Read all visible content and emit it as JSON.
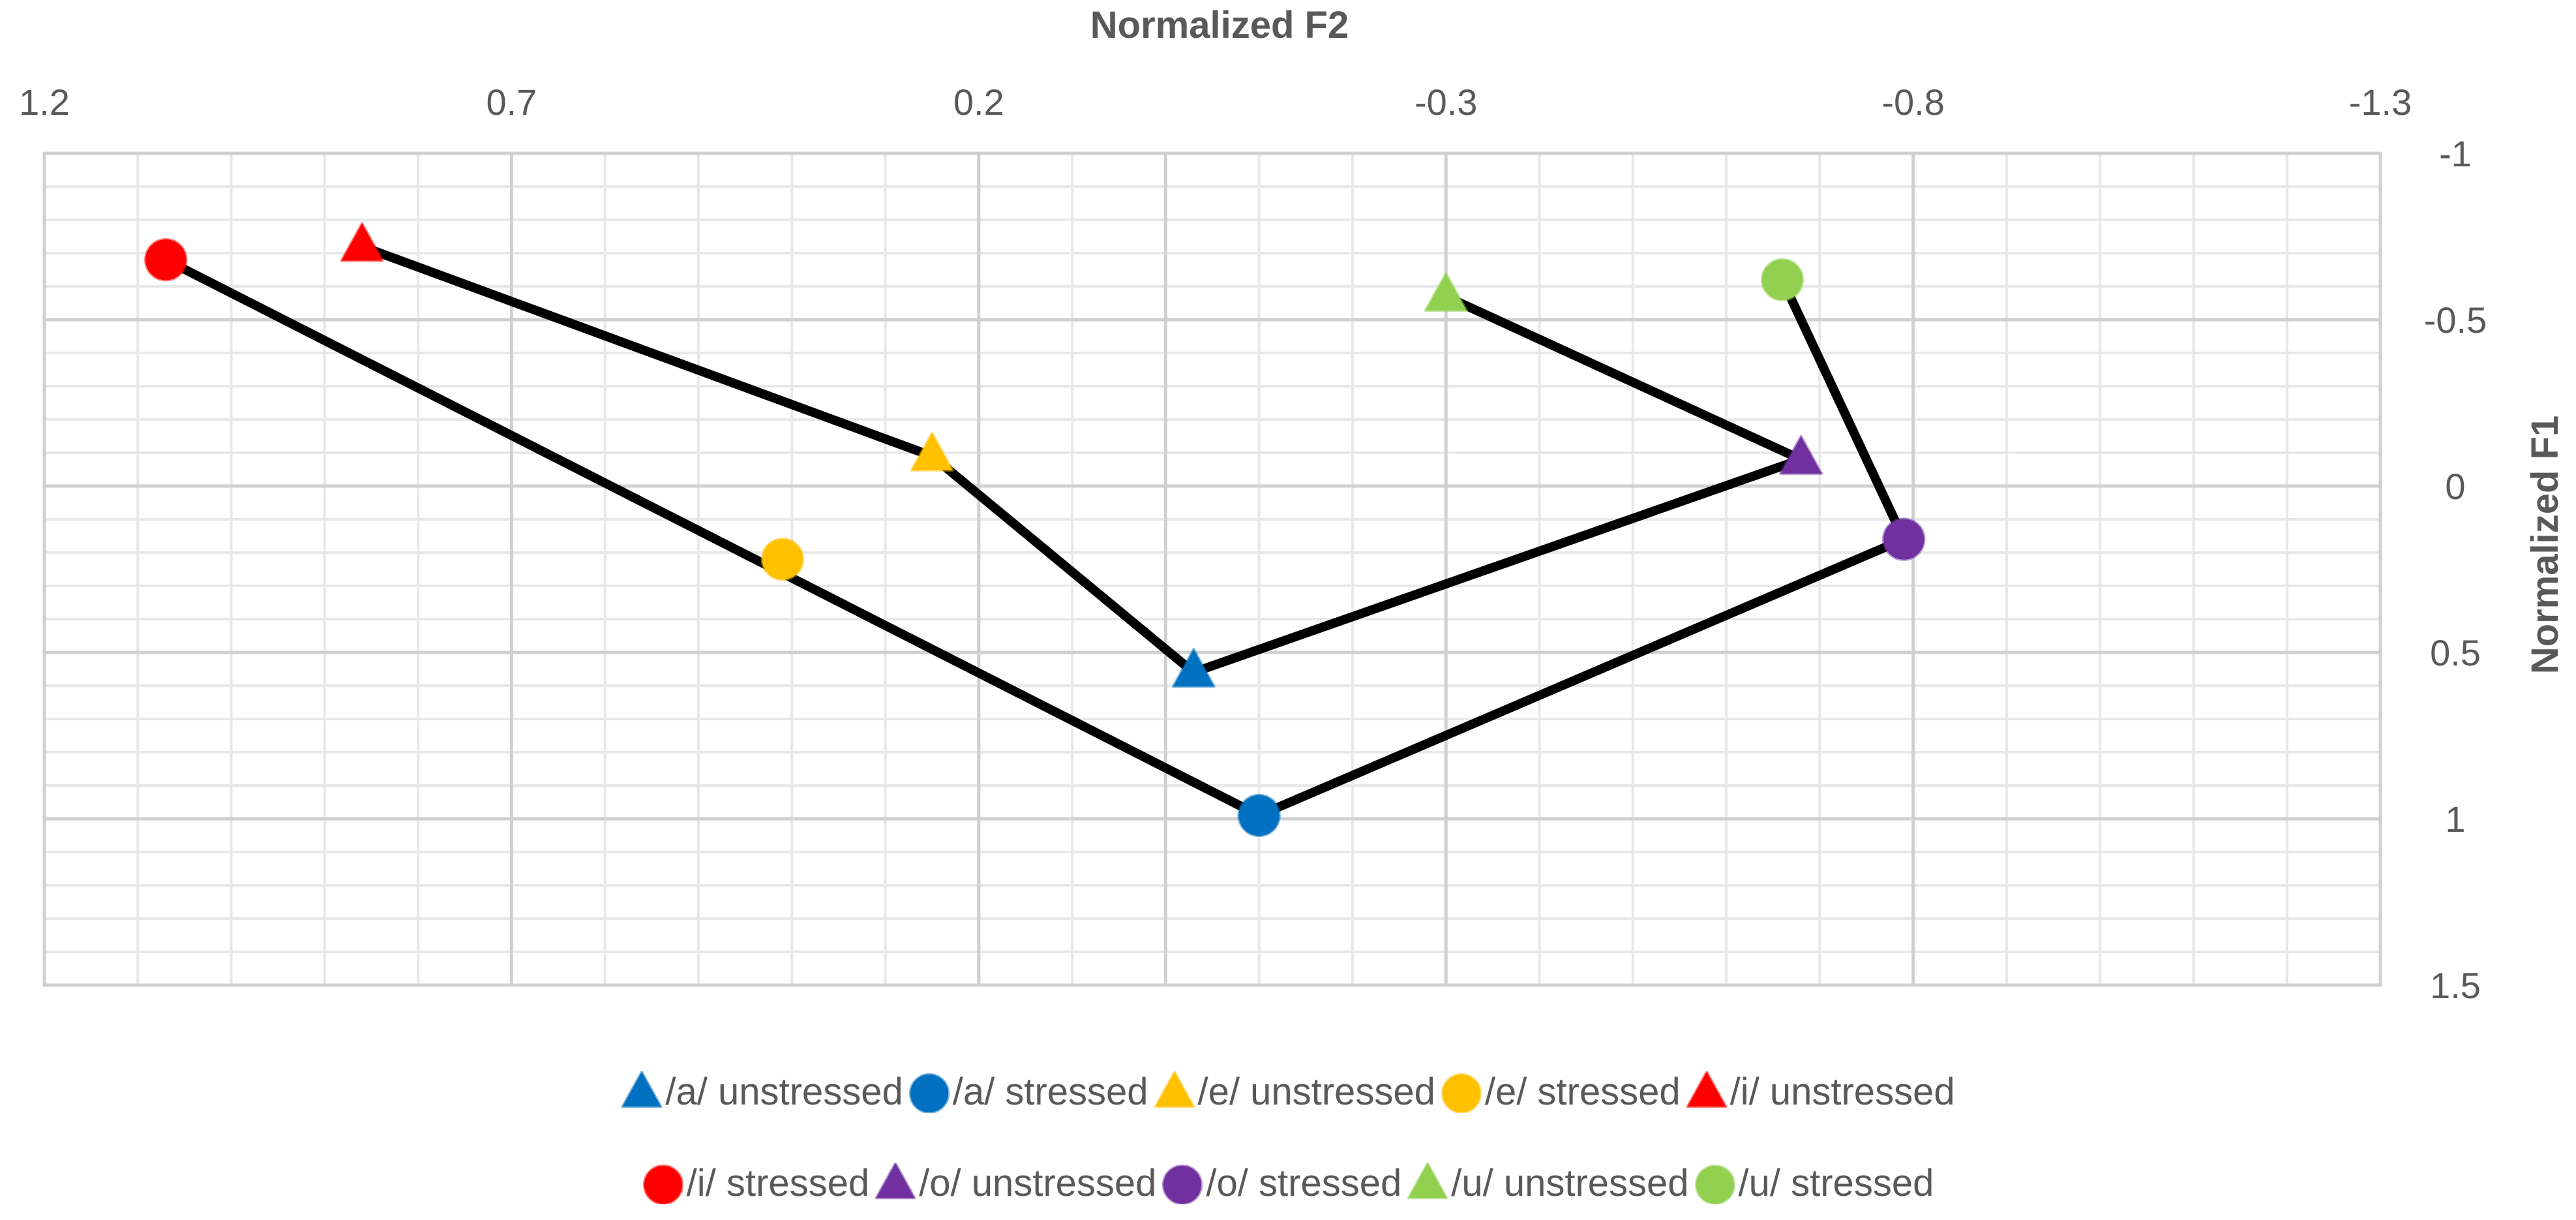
{
  "chart_data": {
    "type": "scatter",
    "xlabel": "Normalized F2",
    "ylabel": "Normalized F1",
    "x_axis": {
      "min": -1.3,
      "max": 1.2,
      "reversed": true,
      "major_unit": 0.5,
      "minor_unit": 0.1,
      "position": "top",
      "tick_labels": [
        "1.2",
        "0.7",
        "0.2",
        "-0.3",
        "-0.8",
        "-1.3"
      ]
    },
    "y_axis": {
      "min": -1,
      "max": 1.5,
      "reversed": true,
      "major_unit": 0.5,
      "minor_unit": 0.1,
      "position": "right",
      "tick_labels": [
        "-1",
        "-0.5",
        "0",
        "0.5",
        "1",
        "1.5"
      ]
    },
    "grid": true,
    "legend_position": "bottom",
    "series": [
      {
        "name": "/a/ unstressed",
        "marker": "triangle",
        "color": "#0070C0",
        "x": -0.03,
        "y": 0.56
      },
      {
        "name": "/a/ stressed",
        "marker": "circle",
        "color": "#0070C0",
        "x": -0.1,
        "y": 0.99
      },
      {
        "name": "/e/ unstressed",
        "marker": "triangle",
        "color": "#FFC000",
        "x": 0.25,
        "y": -0.09
      },
      {
        "name": "/e/ stressed",
        "marker": "circle",
        "color": "#FFC000",
        "x": 0.41,
        "y": 0.22
      },
      {
        "name": "/i/ unstressed",
        "marker": "triangle",
        "color": "#FF0000",
        "x": 0.86,
        "y": -0.72
      },
      {
        "name": "/i/ stressed",
        "marker": "circle",
        "color": "#FF0000",
        "x": 1.07,
        "y": -0.68
      },
      {
        "name": "/o/ unstressed",
        "marker": "triangle",
        "color": "#7030A0",
        "x": -0.68,
        "y": -0.08
      },
      {
        "name": "/o/ stressed",
        "marker": "circle",
        "color": "#7030A0",
        "x": -0.79,
        "y": 0.16
      },
      {
        "name": "/u/ unstressed",
        "marker": "triangle",
        "color": "#92D050",
        "x": -0.3,
        "y": -0.57
      },
      {
        "name": "/u/ stressed",
        "marker": "circle",
        "color": "#92D050",
        "x": -0.66,
        "y": -0.62
      }
    ],
    "connector_lines": [
      {
        "color": "#000000",
        "points": [
          [
            0.86,
            -0.72
          ],
          [
            0.25,
            -0.09
          ],
          [
            -0.03,
            0.56
          ],
          [
            -0.68,
            -0.08
          ],
          [
            -0.3,
            -0.57
          ]
        ]
      },
      {
        "color": "#000000",
        "points": [
          [
            1.07,
            -0.68
          ],
          [
            -0.1,
            0.99
          ],
          [
            -0.79,
            0.16
          ],
          [
            -0.66,
            -0.62
          ]
        ]
      }
    ]
  }
}
